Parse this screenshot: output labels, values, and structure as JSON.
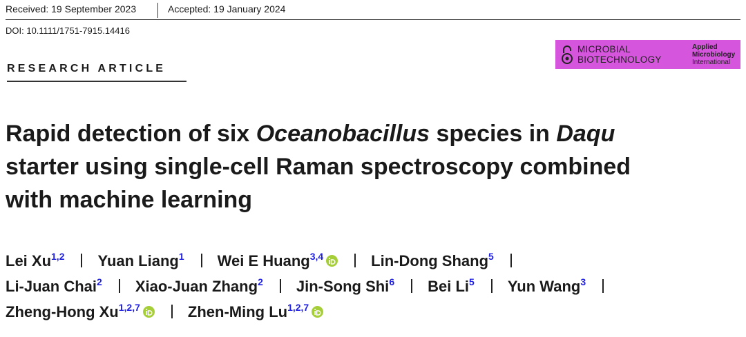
{
  "header": {
    "received": "Received: 19 September 2023",
    "accepted": "Accepted: 19 January 2024",
    "doi": "DOI: 10.1111/1751-7915.14416"
  },
  "journal_logo": {
    "name_line1": "MICROBIAL",
    "name_line2": "BIOTECHNOLOGY",
    "society_line1": "Applied",
    "society_line2": "Microbiology",
    "society_line3": "International"
  },
  "article_type": "RESEARCH ARTICLE",
  "title": {
    "lines": [
      [
        {
          "text": "Rapid detection of six ",
          "italic": false
        },
        {
          "text": "Oceanobacillus",
          "italic": true
        },
        {
          "text": " species in ",
          "italic": false
        },
        {
          "text": "Daqu",
          "italic": true
        }
      ],
      [
        {
          "text": "starter using single-cell Raman spectroscopy combined",
          "italic": false
        }
      ],
      [
        {
          "text": "with machine learning",
          "italic": false
        }
      ]
    ]
  },
  "author_lines": [
    [
      {
        "name": "Lei Xu",
        "affiliations": "1,2",
        "orcid": false
      },
      {
        "name": "Yuan Liang",
        "affiliations": "1",
        "orcid": false
      },
      {
        "name": "Wei E Huang",
        "affiliations": "3,4",
        "orcid": true
      },
      {
        "name": "Lin-Dong Shang",
        "affiliations": "5",
        "orcid": false
      }
    ],
    [
      {
        "name": "Li-Juan Chai",
        "affiliations": "2",
        "orcid": false
      },
      {
        "name": "Xiao-Juan Zhang",
        "affiliations": "2",
        "orcid": false
      },
      {
        "name": "Jin-Song Shi",
        "affiliations": "6",
        "orcid": false
      },
      {
        "name": "Bei Li",
        "affiliations": "5",
        "orcid": false
      },
      {
        "name": "Yun Wang",
        "affiliations": "3",
        "orcid": false
      }
    ],
    [
      {
        "name": "Zheng-Hong Xu",
        "affiliations": "1,2,7",
        "orcid": true
      },
      {
        "name": "Zhen-Ming Lu",
        "affiliations": "1,2,7",
        "orcid": true
      }
    ]
  ]
}
